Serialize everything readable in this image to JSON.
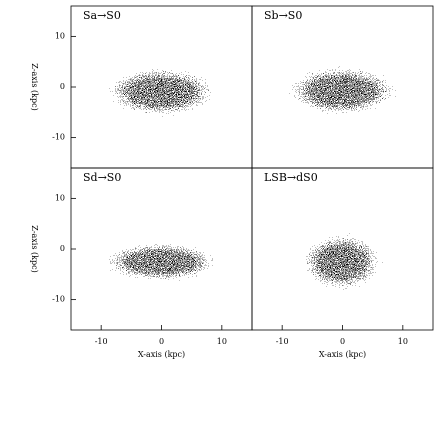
{
  "chart_data": [
    {
      "type": "scatter",
      "title": "Sa→S0",
      "ylabel": "Z-axis (kpc)",
      "xlim": [
        -15,
        15
      ],
      "ylim": [
        -16,
        16
      ],
      "yticks": [
        -10,
        0,
        10
      ]
    },
    {
      "type": "scatter",
      "title": "Sb→S0",
      "xlim": [
        -15,
        15
      ],
      "ylim": [
        -16,
        16
      ]
    },
    {
      "type": "scatter",
      "title": "Sd→S0",
      "xlabel": "X-axis (kpc)",
      "ylabel": "Z-axis (kpc)",
      "xlim": [
        -15,
        15
      ],
      "ylim": [
        -16,
        16
      ],
      "xticks": [
        -10,
        0,
        10
      ],
      "yticks": [
        -10,
        0,
        10
      ]
    },
    {
      "type": "scatter",
      "title": "LSB→dS0",
      "xlabel": "X-axis (kpc)",
      "xlim": [
        -15,
        15
      ],
      "ylim": [
        -16,
        16
      ],
      "xticks": [
        -10,
        0,
        10
      ]
    }
  ]
}
